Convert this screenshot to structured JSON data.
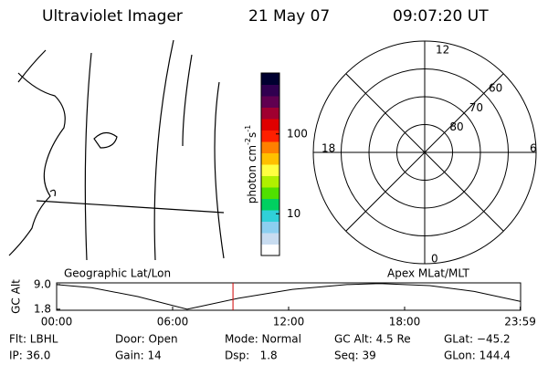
{
  "header": {
    "title": "Ultraviolet Imager",
    "date": "21 May 07",
    "time": "09:07:20 UT"
  },
  "colorbar": {
    "label": [
      "photon cm",
      "-2",
      "s",
      "-1"
    ],
    "log": true,
    "lim": [
      3,
      580
    ],
    "ticks": [
      10,
      100
    ],
    "colors": [
      "#ffffff",
      "#c8dcf0",
      "#8ccff0",
      "#30d0d8",
      "#00d060",
      "#50e000",
      "#b0f000",
      "#ffff40",
      "#ffc000",
      "#ff8000",
      "#ff2000",
      "#e00000",
      "#a00030",
      "#600050",
      "#300050",
      "#000030"
    ]
  },
  "polar": {
    "mlt_labels": [
      "12",
      "18",
      "6",
      "0"
    ],
    "lat_rings": [
      80,
      70,
      60
    ]
  },
  "chart_data": {
    "type": "line",
    "title_left": "Geographic Lat/Lon",
    "title_right": "Apex MLat/MLT",
    "y_label": "GC Alt",
    "color": "#000000",
    "x": [
      0,
      1.8,
      4.2,
      6.75,
      7.5,
      9.4,
      12.2,
      15,
      16.7,
      19.3,
      21.6,
      23.98
    ],
    "values": [
      9.0,
      8.1,
      5.5,
      1.8,
      2.7,
      5.0,
      7.6,
      9.0,
      9.3,
      8.7,
      7.0,
      4.1
    ],
    "xlim": [
      0,
      24
    ],
    "ylim": [
      1.5,
      9.5
    ],
    "xticks": [
      {
        "value": 0,
        "label": "00:00"
      },
      {
        "value": 6,
        "label": "06:00"
      },
      {
        "value": 12,
        "label": "12:00"
      },
      {
        "value": 18,
        "label": "18:00"
      },
      {
        "value": 23.98,
        "label": "23:59"
      }
    ],
    "yticks": [
      1.8,
      {
        "value": 9,
        "label": "9.0"
      }
    ],
    "marker": {
      "value": 9.122,
      "color": "#d00000"
    }
  },
  "info": [
    [
      "Flt: LBHL",
      "Door: Open",
      "Mode: Normal",
      "GC Alt: 4.5 Re",
      "GLat: −45.2"
    ],
    [
      "IP: 36.0",
      "Gain: 14",
      "Dsp:   1.8",
      "Seq: 39",
      "GLon: 144.4"
    ]
  ]
}
